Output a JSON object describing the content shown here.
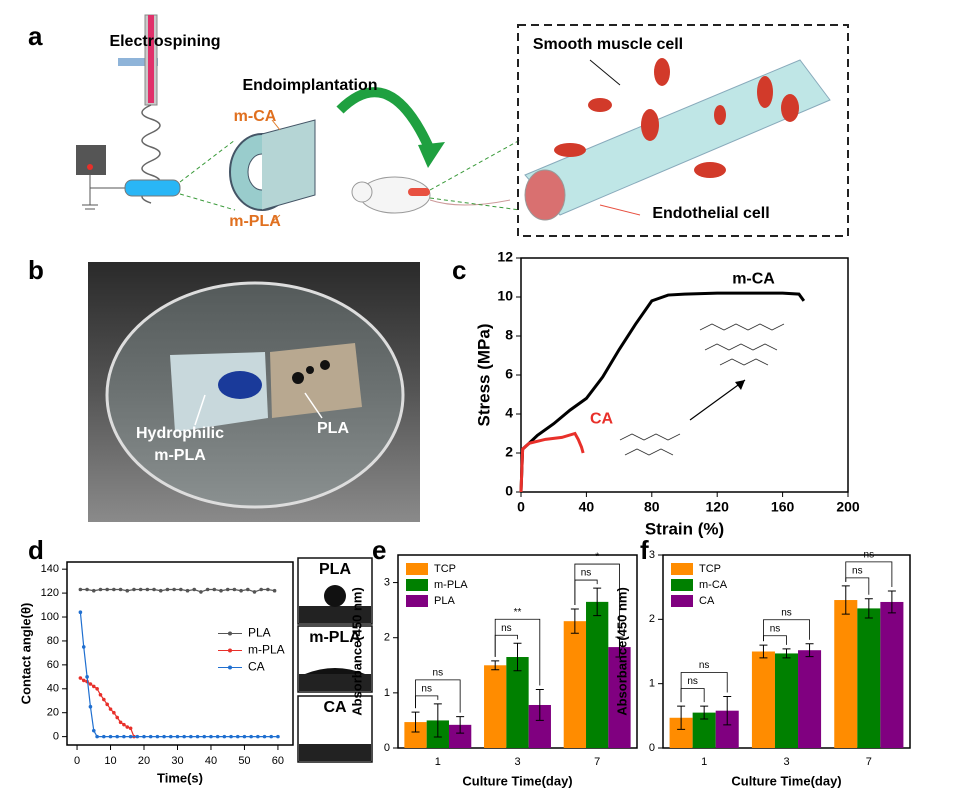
{
  "panel_labels": [
    "a",
    "b",
    "c",
    "d",
    "e",
    "f"
  ],
  "schematic": {
    "electrospinning": "Electrospining",
    "endoimplantation": "Endoimplantation",
    "m_ca": "m-CA",
    "m_pla": "m-PLA",
    "smooth_muscle": "Smooth muscle cell",
    "endothelial": "Endothelial cell"
  },
  "photo": {
    "hydrophilic": "Hydrophilic",
    "m_pla": "m-PLA",
    "pla": "PLA"
  },
  "droplet_images": [
    "PLA",
    "m-PLA",
    "CA"
  ],
  "chart_data": [
    {
      "type": "line",
      "xlabel": "Strain (%)",
      "ylabel": "Stress (MPa)",
      "xlim": [
        0,
        200
      ],
      "xticks": [
        0,
        40,
        80,
        120,
        160,
        200
      ],
      "ylim": [
        0,
        12
      ],
      "yticks": [
        0,
        2,
        4,
        6,
        8,
        10,
        12
      ],
      "legend": "inline",
      "series": [
        {
          "name": "m-CA",
          "color": "#000000",
          "x": [
            0,
            1,
            5,
            10,
            20,
            30,
            40,
            50,
            60,
            70,
            80,
            90,
            100,
            120,
            140,
            160,
            170,
            173
          ],
          "values": [
            0,
            2.2,
            2.5,
            2.9,
            3.5,
            4.2,
            4.8,
            5.9,
            7.3,
            8.6,
            9.8,
            10.1,
            10.15,
            10.2,
            10.2,
            10.2,
            10.15,
            9.8
          ]
        },
        {
          "name": "CA",
          "color": "#e8302a",
          "x": [
            0,
            1,
            5,
            15,
            25,
            33,
            35,
            37,
            38
          ],
          "values": [
            0,
            2.2,
            2.5,
            2.7,
            2.8,
            3.0,
            2.7,
            2.3,
            2.0
          ]
        }
      ]
    },
    {
      "type": "line",
      "xlabel": "Time(s)",
      "ylabel": "Contact angle(θ)",
      "xlim": [
        -3,
        64.5
      ],
      "xticks": [
        0,
        10,
        20,
        30,
        40,
        50,
        60
      ],
      "ylim": [
        -7,
        146
      ],
      "yticks": [
        0,
        20,
        40,
        60,
        80,
        100,
        120,
        140
      ],
      "legend": "right",
      "markers": true,
      "series": [
        {
          "name": "PLA",
          "color": "#555555",
          "x": [
            1,
            3,
            5,
            7,
            9,
            11,
            13,
            15,
            17,
            19,
            21,
            23,
            25,
            27,
            29,
            31,
            33,
            35,
            37,
            39,
            41,
            43,
            45,
            47,
            49,
            51,
            53,
            55,
            57,
            59
          ],
          "values": [
            123,
            123,
            122,
            123,
            123,
            123,
            123,
            122,
            123,
            123,
            123,
            123,
            122,
            123,
            123,
            123,
            122,
            123,
            121,
            123,
            123,
            122,
            123,
            123,
            122,
            123,
            121,
            123,
            123,
            122
          ]
        },
        {
          "name": "m-PLA",
          "color": "#e8302a",
          "x": [
            1,
            2,
            3,
            4,
            5,
            6,
            7,
            8,
            9,
            10,
            11,
            12,
            13,
            14,
            15,
            16,
            17
          ],
          "values": [
            49,
            47,
            46,
            44,
            42,
            40,
            35,
            31,
            27,
            23,
            20,
            16,
            12,
            10,
            8,
            7,
            0
          ]
        },
        {
          "name": "CA",
          "color": "#1f6fd0",
          "x": [
            1,
            2,
            3,
            4,
            5,
            6,
            8,
            10,
            12,
            14,
            16,
            18,
            20,
            22,
            24,
            26,
            28,
            30,
            32,
            34,
            36,
            38,
            40,
            42,
            44,
            46,
            48,
            50,
            52,
            54,
            56,
            58,
            60
          ],
          "values": [
            104,
            75,
            50,
            25,
            5,
            0,
            0,
            0,
            0,
            0,
            0,
            0,
            0,
            0,
            0,
            0,
            0,
            0,
            0,
            0,
            0,
            0,
            0,
            0,
            0,
            0,
            0,
            0,
            0,
            0,
            0,
            0,
            0
          ]
        }
      ]
    },
    {
      "type": "bar",
      "xlabel": "Culture Time(day)",
      "ylabel": "Absorbance(450 nm)",
      "categories": [
        "1",
        "3",
        "7"
      ],
      "ylim": [
        0,
        3.5
      ],
      "yticks": [
        0,
        1,
        2,
        3
      ],
      "legend": "top-left",
      "series": [
        {
          "name": "TCP",
          "color": "#ff8c00",
          "values": [
            0.47,
            1.5,
            2.3
          ],
          "errors": [
            0.18,
            0.08,
            0.22
          ]
        },
        {
          "name": "m-PLA",
          "color": "#008000",
          "values": [
            0.5,
            1.65,
            2.65
          ],
          "errors": [
            0.3,
            0.25,
            0.25
          ]
        },
        {
          "name": "PLA",
          "color": "#800080",
          "values": [
            0.42,
            0.78,
            1.83
          ],
          "errors": [
            0.15,
            0.28,
            0.18
          ]
        }
      ],
      "significance": [
        [
          "ns",
          "ns"
        ],
        [
          "ns",
          "**"
        ],
        [
          "ns",
          "*"
        ]
      ]
    },
    {
      "type": "bar",
      "xlabel": "Culture Time(day)",
      "ylabel": "Absorbance(450 nm)",
      "categories": [
        "1",
        "3",
        "7"
      ],
      "ylim": [
        0,
        3
      ],
      "yticks": [
        0,
        1,
        2,
        3
      ],
      "legend": "top-left",
      "series": [
        {
          "name": "TCP",
          "color": "#ff8c00",
          "values": [
            0.47,
            1.5,
            2.3
          ],
          "errors": [
            0.18,
            0.1,
            0.22
          ]
        },
        {
          "name": "m-CA",
          "color": "#008000",
          "values": [
            0.55,
            1.47,
            2.17
          ],
          "errors": [
            0.1,
            0.07,
            0.15
          ]
        },
        {
          "name": "CA",
          "color": "#800080",
          "values": [
            0.58,
            1.52,
            2.27
          ],
          "errors": [
            0.22,
            0.1,
            0.17
          ]
        }
      ],
      "significance": [
        [
          "ns",
          "ns"
        ],
        [
          "ns",
          "ns"
        ],
        [
          "ns",
          "ns"
        ]
      ]
    }
  ]
}
